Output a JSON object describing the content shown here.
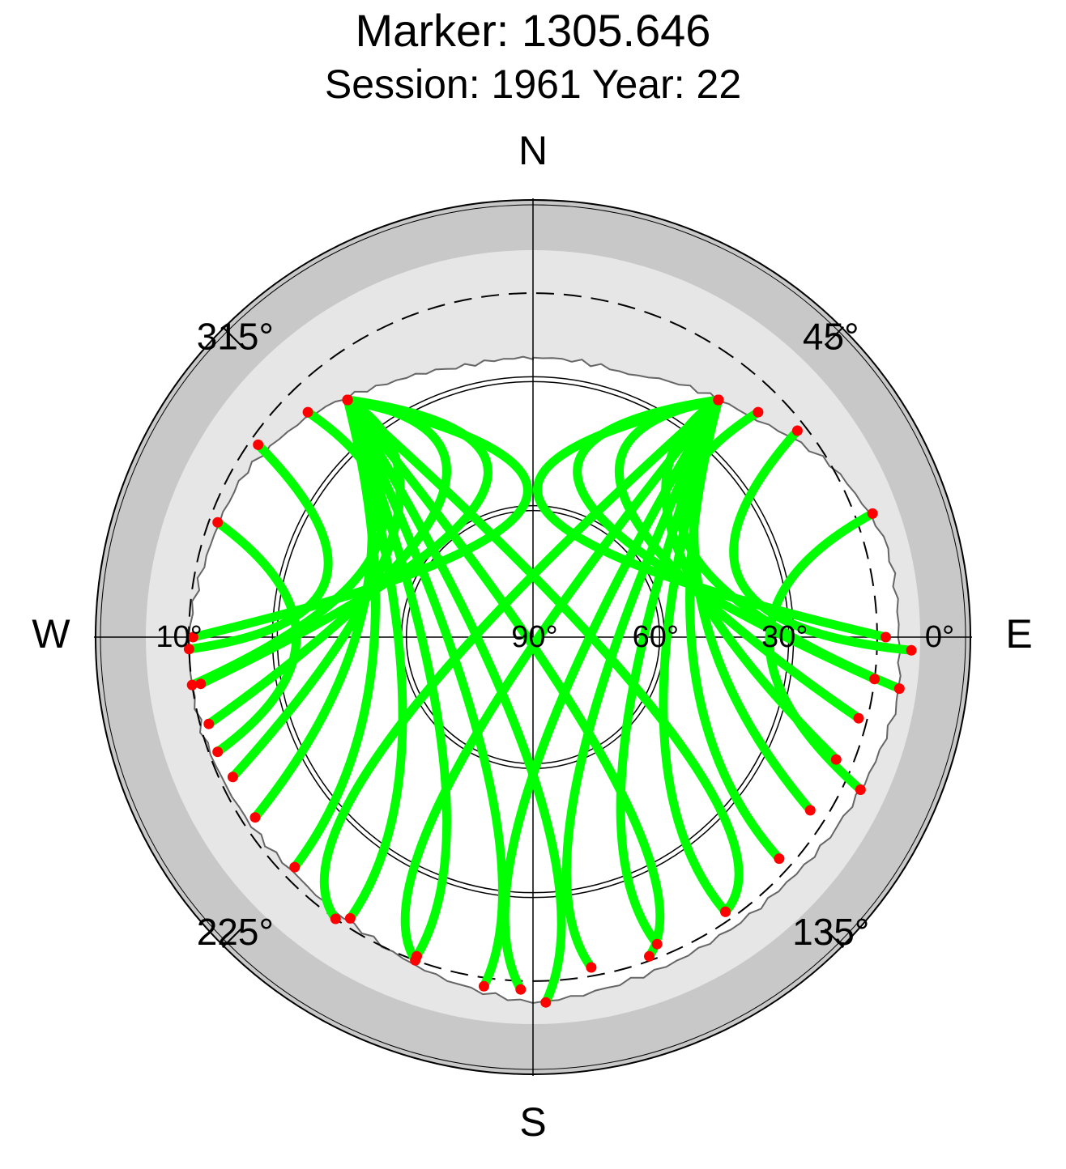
{
  "chart_data": {
    "type": "scatter",
    "projection": "polar-skyplot",
    "title": "Marker: 1305.646",
    "subtitle": "Session: 1961 Year: 22",
    "cardinal_labels": {
      "north": "N",
      "south": "S",
      "east": "E",
      "west": "W"
    },
    "azimuth_labels": [
      {
        "azimuth_deg": 45,
        "text": "45°"
      },
      {
        "azimuth_deg": 135,
        "text": "135°"
      },
      {
        "azimuth_deg": 225,
        "text": "225°"
      },
      {
        "azimuth_deg": 315,
        "text": "315°"
      }
    ],
    "elevation_labels": [
      {
        "elevation_deg": 0,
        "text": "0°"
      },
      {
        "elevation_deg": 30,
        "text": "30°"
      },
      {
        "elevation_deg": 60,
        "text": "60°"
      },
      {
        "elevation_deg": 90,
        "text": "90°"
      },
      {
        "elevation_deg": 10,
        "text": "10°"
      }
    ],
    "elevation_range": [
      0,
      90
    ],
    "elevation_mask_deg": 10,
    "circle_elevations": [
      30,
      60
    ],
    "colors": {
      "track": "#00ff00",
      "endpoint": "#ff0000",
      "outer_band": "#c8c8c8",
      "horizon_band": "#e6e6e6",
      "horizon_line": "#666666",
      "grid": "#000000"
    },
    "horizon_profile": [
      {
        "az": 0,
        "el": 25
      },
      {
        "az": 20,
        "el": 25
      },
      {
        "az": 30,
        "el": 22
      },
      {
        "az": 45,
        "el": 18
      },
      {
        "az": 60,
        "el": 10
      },
      {
        "az": 75,
        "el": 5
      },
      {
        "az": 90,
        "el": 5
      },
      {
        "az": 100,
        "el": 4
      },
      {
        "az": 115,
        "el": 6
      },
      {
        "az": 135,
        "el": 8
      },
      {
        "az": 150,
        "el": 8
      },
      {
        "az": 165,
        "el": 7
      },
      {
        "az": 180,
        "el": 5
      },
      {
        "az": 195,
        "el": 8
      },
      {
        "az": 210,
        "el": 11
      },
      {
        "az": 225,
        "el": 12
      },
      {
        "az": 240,
        "el": 11
      },
      {
        "az": 255,
        "el": 10
      },
      {
        "az": 270,
        "el": 10
      },
      {
        "az": 285,
        "el": 12
      },
      {
        "az": 300,
        "el": 13
      },
      {
        "az": 315,
        "el": 17
      },
      {
        "az": 330,
        "el": 22
      },
      {
        "az": 345,
        "el": 25
      },
      {
        "az": 360,
        "el": 25
      }
    ],
    "tracks": [
      {
        "a": [
          38,
          20
        ],
        "b": [
          5,
          60
        ],
        "c": [
          90,
          8
        ]
      },
      {
        "a": [
          38,
          20
        ],
        "b": [
          20,
          55
        ],
        "c": [
          97,
          10
        ]
      },
      {
        "a": [
          38,
          20
        ],
        "b": [
          35,
          52
        ],
        "c": [
          104,
          12
        ]
      },
      {
        "a": [
          38,
          20
        ],
        "b": [
          55,
          50
        ],
        "c": [
          112,
          14
        ]
      },
      {
        "a": [
          38,
          20
        ],
        "b": [
          80,
          50
        ],
        "c": [
          122,
          14
        ]
      },
      {
        "a": [
          38,
          20
        ],
        "b": [
          100,
          52
        ],
        "c": [
          132,
          13
        ]
      },
      {
        "a": [
          38,
          20
        ],
        "b": [
          120,
          55
        ],
        "c": [
          145,
          12
        ]
      },
      {
        "a": [
          38,
          20
        ],
        "b": [
          140,
          57
        ],
        "c": [
          158,
          13
        ]
      },
      {
        "a": [
          38,
          20
        ],
        "b": [
          160,
          58
        ],
        "c": [
          170,
          12
        ]
      },
      {
        "a": [
          38,
          20
        ],
        "b": [
          180,
          58
        ],
        "c": [
          182,
          8
        ]
      },
      {
        "a": [
          38,
          20
        ],
        "b": [
          210,
          55
        ],
        "c": [
          200,
          10
        ]
      },
      {
        "a": [
          38,
          20
        ],
        "b": [
          235,
          50
        ],
        "c": [
          215,
          10
        ]
      },
      {
        "a": [
          322,
          20
        ],
        "b": [
          355,
          60
        ],
        "c": [
          270,
          11
        ]
      },
      {
        "a": [
          322,
          20
        ],
        "b": [
          340,
          55
        ],
        "c": [
          262,
          12
        ]
      },
      {
        "a": [
          322,
          20
        ],
        "b": [
          325,
          52
        ],
        "c": [
          255,
          12
        ]
      },
      {
        "a": [
          322,
          20
        ],
        "b": [
          305,
          50
        ],
        "c": [
          245,
          13
        ]
      },
      {
        "a": [
          322,
          20
        ],
        "b": [
          280,
          50
        ],
        "c": [
          237,
          13
        ]
      },
      {
        "a": [
          322,
          20
        ],
        "b": [
          260,
          52
        ],
        "c": [
          226,
          13
        ]
      },
      {
        "a": [
          322,
          20
        ],
        "b": [
          240,
          55
        ],
        "c": [
          213,
          12
        ]
      },
      {
        "a": [
          322,
          20
        ],
        "b": [
          220,
          57
        ],
        "c": [
          200,
          11
        ]
      },
      {
        "a": [
          322,
          20
        ],
        "b": [
          200,
          58
        ],
        "c": [
          188,
          8
        ]
      },
      {
        "a": [
          322,
          20
        ],
        "b": [
          180,
          58
        ],
        "c": [
          178,
          5
        ]
      },
      {
        "a": [
          322,
          20
        ],
        "b": [
          150,
          55
        ],
        "c": [
          160,
          11
        ]
      },
      {
        "a": [
          322,
          20
        ],
        "b": [
          125,
          50
        ],
        "c": [
          145,
          12
        ]
      },
      {
        "a": [
          45,
          16
        ],
        "b": [
          60,
          48
        ],
        "c": [
          98,
          4
        ]
      },
      {
        "a": [
          52,
          12
        ],
        "b": [
          75,
          40
        ],
        "c": [
          92,
          2
        ]
      },
      {
        "a": [
          70,
          6
        ],
        "b": [
          90,
          35
        ],
        "c": [
          115,
          6
        ]
      },
      {
        "a": [
          315,
          16
        ],
        "b": [
          300,
          48
        ],
        "c": [
          262,
          10
        ]
      },
      {
        "a": [
          305,
          12
        ],
        "b": [
          285,
          40
        ],
        "c": [
          268,
          10
        ]
      },
      {
        "a": [
          290,
          12
        ],
        "b": [
          270,
          35
        ],
        "c": [
          250,
          12
        ]
      }
    ]
  }
}
